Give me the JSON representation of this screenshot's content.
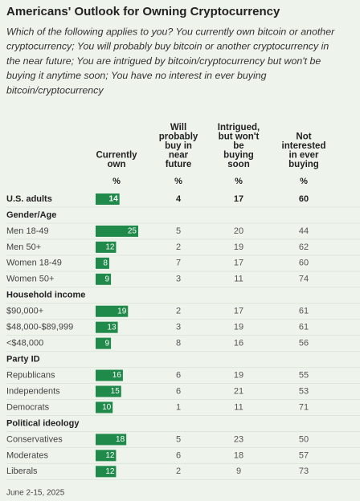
{
  "chart_data": {
    "type": "bar-table",
    "title": "Americans' Outlook for Owning Cryptocurrency",
    "subtitle_lines": [
      "Which of the following applies to you? You currently own bitcoin or another",
      "cryptocurrency; You will probably buy bitcoin or another cryptocurrency in",
      "the near future; You are intrigued by bitcoin/cryptocurrency but won't be",
      "buying it anytime soon; You have no interest in ever buying",
      "bitcoin/cryptocurrency"
    ],
    "column_header_lines": [
      [
        "Currently",
        "own"
      ],
      [
        "Will",
        "probably",
        "buy in",
        "near",
        "future"
      ],
      [
        "Intrigued,",
        "but won't",
        "be",
        "buying",
        "soon"
      ],
      [
        "Not",
        "interested",
        "in ever",
        "buying"
      ]
    ],
    "unit_labels": [
      "%",
      "%",
      "%",
      "%"
    ],
    "color": "#1f8a4a",
    "rows": [
      {
        "label": "U.S. adults",
        "values": [
          14,
          4,
          17,
          60
        ]
      },
      {
        "heading": "Gender/Age"
      },
      {
        "label": "Men 18-49",
        "values": [
          25,
          5,
          20,
          44
        ]
      },
      {
        "label": "Men 50+",
        "values": [
          12,
          2,
          19,
          62
        ]
      },
      {
        "label": "Women 18-49",
        "values": [
          8,
          7,
          17,
          60
        ]
      },
      {
        "label": "Women 50+",
        "values": [
          9,
          3,
          11,
          74
        ]
      },
      {
        "heading": "Household income"
      },
      {
        "label": "$90,000+",
        "values": [
          19,
          2,
          17,
          61
        ]
      },
      {
        "label": "$48,000-$89,999",
        "values": [
          13,
          3,
          19,
          61
        ]
      },
      {
        "label": "<$48,000",
        "values": [
          9,
          8,
          16,
          56
        ]
      },
      {
        "heading": "Party ID"
      },
      {
        "label": "Republicans",
        "values": [
          16,
          6,
          19,
          55
        ]
      },
      {
        "label": "Independents",
        "values": [
          15,
          6,
          21,
          53
        ]
      },
      {
        "label": "Democrats",
        "values": [
          10,
          1,
          11,
          71
        ]
      },
      {
        "heading": "Political ideology"
      },
      {
        "label": "Conservatives",
        "values": [
          18,
          5,
          23,
          50
        ]
      },
      {
        "label": "Moderates",
        "values": [
          12,
          6,
          18,
          57
        ]
      },
      {
        "label": "Liberals",
        "values": [
          12,
          2,
          9,
          73
        ]
      }
    ],
    "footnote": "June 2-15, 2025"
  }
}
